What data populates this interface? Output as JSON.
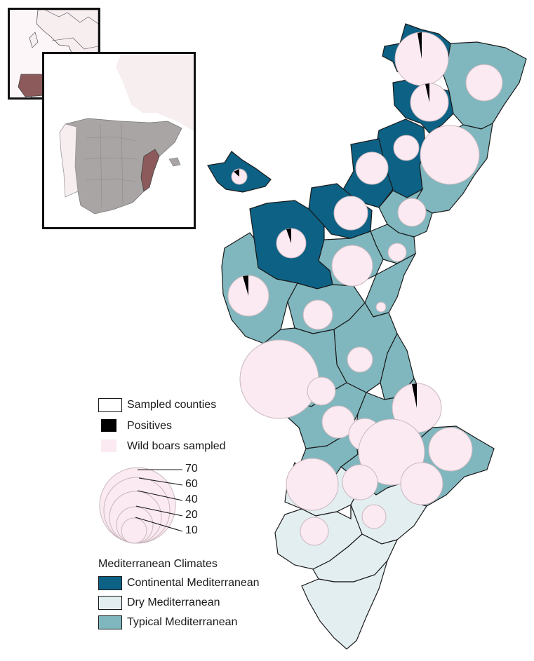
{
  "legend": {
    "sampled_counties": "Sampled counties",
    "positives": "Positives",
    "wild_boars_sampled": "Wild boars sampled",
    "size_scale": [
      "70",
      "60",
      "40",
      "20",
      "10"
    ],
    "climates_title": "Mediterranean Climates",
    "climates": [
      {
        "label": "Continental Mediterranean",
        "color": "#0c6185"
      },
      {
        "label": "Dry Mediterranean",
        "color": "#e3eef1"
      },
      {
        "label": "Typical Mediterranean",
        "color": "#80b7bf"
      }
    ]
  },
  "colors": {
    "continental": "#0c6185",
    "dry": "#e3eef1",
    "typical": "#80b7bf",
    "sampled_fill": "#fbeaf1",
    "positive": "#000000",
    "spain": "#a9a5a5",
    "highlight": "#8c5a5a",
    "land": "#f7eef0"
  },
  "icons": [
    "europe-inset-map",
    "spain-inset-map"
  ]
}
